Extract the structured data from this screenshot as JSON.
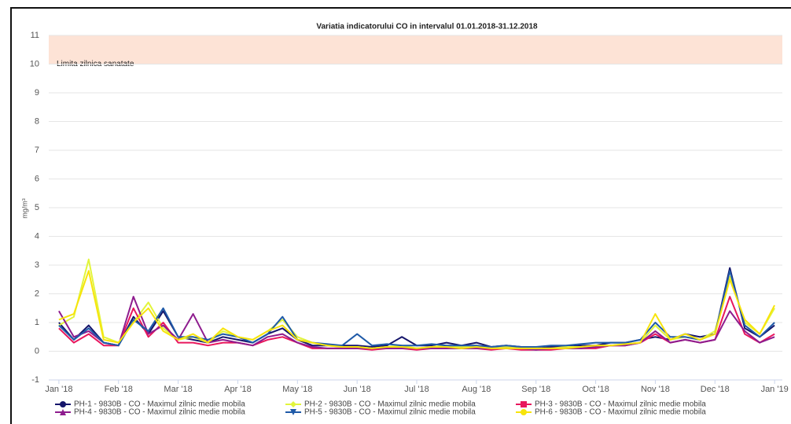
{
  "chart_data": {
    "type": "line",
    "title": "Variatia indicatorului CO in intervalul 01.01.2018-31.12.2018",
    "y_label": "mg/m³",
    "bands": [
      {
        "from": 10,
        "to": 11,
        "label": "Limita zilnica sanatate",
        "color": "#fde3d6"
      }
    ],
    "x": [
      0,
      0.25,
      0.5,
      0.75,
      1,
      1.25,
      1.5,
      1.75,
      2,
      2.25,
      2.5,
      2.75,
      3,
      3.25,
      3.5,
      3.75,
      4,
      4.25,
      4.5,
      4.75,
      5,
      5.25,
      5.5,
      5.75,
      6,
      6.25,
      6.5,
      6.75,
      7,
      7.25,
      7.5,
      7.75,
      8,
      8.25,
      8.5,
      8.75,
      9,
      9.25,
      9.5,
      9.75,
      10,
      10.25,
      10.5,
      10.75,
      11,
      11.25,
      11.5,
      11.75,
      12
    ],
    "xlim": [
      -0.17,
      12.13
    ],
    "xticks": [
      {
        "value": 0,
        "label": "Jan '18"
      },
      {
        "value": 1,
        "label": "Feb '18"
      },
      {
        "value": 2,
        "label": "Mar '18"
      },
      {
        "value": 3,
        "label": "Apr '18"
      },
      {
        "value": 4,
        "label": "May '18"
      },
      {
        "value": 5,
        "label": "Jun '18"
      },
      {
        "value": 6,
        "label": "Jul '18"
      },
      {
        "value": 7,
        "label": "Aug '18"
      },
      {
        "value": 8,
        "label": "Sep '18"
      },
      {
        "value": 9,
        "label": "Oct '18"
      },
      {
        "value": 10,
        "label": "Nov '18"
      },
      {
        "value": 11,
        "label": "Dec '18"
      },
      {
        "value": 12,
        "label": "Jan '19"
      }
    ],
    "ylim": [
      -1,
      11
    ],
    "yticks": [
      -1,
      0,
      1,
      2,
      3,
      4,
      5,
      6,
      7,
      8,
      9,
      10,
      11
    ],
    "grid": true,
    "legend": "bottom",
    "series": [
      {
        "name": "PH-1 - 9830B - CO - Maximul zilnic medie mobila",
        "color": "#15156b",
        "marker": "circle",
        "values": [
          1.0,
          0.4,
          0.9,
          0.3,
          0.2,
          1.2,
          0.6,
          1.4,
          0.5,
          0.4,
          0.3,
          0.5,
          0.4,
          0.3,
          0.6,
          0.8,
          0.4,
          0.2,
          0.2,
          0.2,
          0.2,
          0.15,
          0.2,
          0.5,
          0.2,
          0.2,
          0.3,
          0.2,
          0.3,
          0.15,
          0.2,
          0.15,
          0.1,
          0.15,
          0.15,
          0.2,
          0.2,
          0.3,
          0.3,
          0.4,
          0.5,
          0.4,
          0.6,
          0.5,
          0.6,
          2.9,
          0.8,
          0.5,
          0.9
        ]
      },
      {
        "name": "PH-2 - 9830B - CO - Maximul zilnic medie mobila",
        "color": "#e2f53c",
        "marker": "diamond",
        "values": [
          0.9,
          1.2,
          3.2,
          0.5,
          0.3,
          1.0,
          1.7,
          0.8,
          0.4,
          0.5,
          0.3,
          0.7,
          0.5,
          0.4,
          0.7,
          1.1,
          0.5,
          0.3,
          0.2,
          0.15,
          0.15,
          0.1,
          0.15,
          0.2,
          0.1,
          0.15,
          0.2,
          0.15,
          0.2,
          0.1,
          0.15,
          0.1,
          0.1,
          0.1,
          0.15,
          0.15,
          0.2,
          0.2,
          0.25,
          0.3,
          0.9,
          0.4,
          0.5,
          0.4,
          0.7,
          2.6,
          1.0,
          0.6,
          1.5
        ]
      },
      {
        "name": "PH-3 - 9830B - CO - Maximul zilnic medie mobila",
        "color": "#e8175d",
        "marker": "square",
        "values": [
          0.8,
          0.3,
          0.6,
          0.2,
          0.2,
          1.5,
          0.5,
          1.0,
          0.3,
          0.3,
          0.2,
          0.3,
          0.3,
          0.2,
          0.4,
          0.5,
          0.3,
          0.1,
          0.1,
          0.1,
          0.1,
          0.05,
          0.1,
          0.1,
          0.05,
          0.1,
          0.1,
          0.1,
          0.1,
          0.05,
          0.1,
          0.05,
          0.05,
          0.05,
          0.1,
          0.1,
          0.1,
          0.2,
          0.2,
          0.3,
          0.6,
          0.3,
          0.4,
          0.3,
          0.4,
          1.9,
          0.6,
          0.3,
          0.6
        ]
      },
      {
        "name": "PH-4 - 9830B - CO - Maximul zilnic medie mobila",
        "color": "#8e1c8e",
        "marker": "triangle",
        "values": [
          1.4,
          0.5,
          0.7,
          0.3,
          0.2,
          1.9,
          0.6,
          0.9,
          0.4,
          1.3,
          0.3,
          0.4,
          0.3,
          0.2,
          0.5,
          0.6,
          0.3,
          0.15,
          0.1,
          0.1,
          0.1,
          0.1,
          0.1,
          0.1,
          0.1,
          0.1,
          0.1,
          0.1,
          0.1,
          0.1,
          0.1,
          0.1,
          0.05,
          0.1,
          0.1,
          0.1,
          0.15,
          0.2,
          0.2,
          0.3,
          0.7,
          0.3,
          0.4,
          0.3,
          0.4,
          1.4,
          0.7,
          0.3,
          0.5
        ]
      },
      {
        "name": "PH-5 - 9830B - CO - Maximul zilnic medie mobila",
        "color": "#1f5aa8",
        "marker": "triangle-down",
        "values": [
          0.9,
          0.4,
          0.8,
          0.3,
          0.2,
          1.1,
          0.7,
          1.5,
          0.5,
          0.5,
          0.4,
          0.6,
          0.5,
          0.3,
          0.6,
          1.2,
          0.4,
          0.3,
          0.25,
          0.2,
          0.6,
          0.2,
          0.25,
          0.2,
          0.2,
          0.25,
          0.2,
          0.2,
          0.2,
          0.15,
          0.2,
          0.15,
          0.15,
          0.2,
          0.2,
          0.25,
          0.3,
          0.3,
          0.3,
          0.4,
          1.0,
          0.5,
          0.5,
          0.4,
          0.6,
          2.8,
          0.9,
          0.5,
          1.0
        ]
      },
      {
        "name": "PH-6 - 9830B - CO - Maximul zilnic medie mobila",
        "color": "#f7e40c",
        "marker": "circle",
        "values": [
          1.1,
          1.3,
          2.8,
          0.4,
          0.3,
          1.0,
          1.5,
          0.7,
          0.4,
          0.6,
          0.3,
          0.8,
          0.5,
          0.4,
          0.7,
          0.9,
          0.4,
          0.3,
          0.2,
          0.15,
          0.15,
          0.1,
          0.15,
          0.15,
          0.1,
          0.15,
          0.15,
          0.1,
          0.15,
          0.1,
          0.1,
          0.1,
          0.1,
          0.1,
          0.1,
          0.15,
          0.2,
          0.2,
          0.25,
          0.3,
          1.3,
          0.4,
          0.6,
          0.4,
          0.6,
          2.5,
          1.1,
          0.6,
          1.6
        ]
      }
    ]
  }
}
